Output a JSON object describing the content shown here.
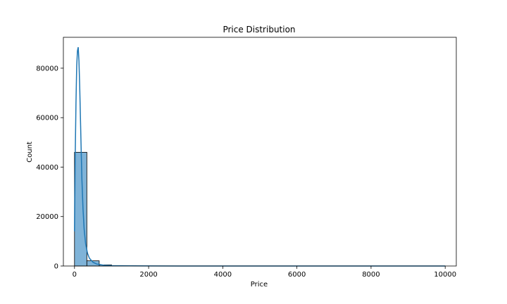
{
  "chart_data": {
    "type": "bar",
    "title": "Price Distribution",
    "xlabel": "Price",
    "ylabel": "Count",
    "xlim": [
      -300,
      10300
    ],
    "ylim": [
      0,
      92500
    ],
    "x_ticks": [
      0,
      2000,
      4000,
      6000,
      8000,
      10000
    ],
    "x_tick_labels": [
      "0",
      "2000",
      "4000",
      "6000",
      "8000",
      "10000"
    ],
    "y_ticks": [
      0,
      20000,
      40000,
      60000,
      80000
    ],
    "y_tick_labels": [
      "0",
      "20000",
      "40000",
      "60000",
      "80000"
    ],
    "grid": false,
    "bar_color": "#7fb3d8",
    "line_color": "#1f77b4",
    "series": [
      {
        "kind": "histogram",
        "bin_width": 333.33,
        "bins": [
          {
            "x0": 0,
            "x1": 333.33,
            "count": 46000
          },
          {
            "x0": 333.33,
            "x1": 666.67,
            "count": 2100
          },
          {
            "x0": 666.67,
            "x1": 1000,
            "count": 450
          },
          {
            "x0": 1000,
            "x1": 1333.33,
            "count": 150
          },
          {
            "x0": 1333.33,
            "x1": 1666.67,
            "count": 60
          },
          {
            "x0": 1666.67,
            "x1": 2000,
            "count": 30
          },
          {
            "x0": 2000,
            "x1": 2333.33,
            "count": 20
          },
          {
            "x0": 2333.33,
            "x1": 2666.67,
            "count": 12
          },
          {
            "x0": 2666.67,
            "x1": 3000,
            "count": 10
          },
          {
            "x0": 3000,
            "x1": 3333.33,
            "count": 6
          },
          {
            "x0": 3333.33,
            "x1": 3666.67,
            "count": 5
          },
          {
            "x0": 3666.67,
            "x1": 4000,
            "count": 4
          },
          {
            "x0": 4000,
            "x1": 4333.33,
            "count": 3
          },
          {
            "x0": 4333.33,
            "x1": 4666.67,
            "count": 2
          },
          {
            "x0": 4666.67,
            "x1": 5000,
            "count": 2
          },
          {
            "x0": 5000,
            "x1": 5333.33,
            "count": 2
          },
          {
            "x0": 5333.33,
            "x1": 5666.67,
            "count": 1
          },
          {
            "x0": 5666.67,
            "x1": 6000,
            "count": 1
          },
          {
            "x0": 6000,
            "x1": 6333.33,
            "count": 1
          },
          {
            "x0": 6333.33,
            "x1": 6666.67,
            "count": 1
          },
          {
            "x0": 6666.67,
            "x1": 7000,
            "count": 1
          },
          {
            "x0": 7000,
            "x1": 7333.33,
            "count": 1
          },
          {
            "x0": 7333.33,
            "x1": 7666.67,
            "count": 1
          },
          {
            "x0": 7666.67,
            "x1": 8000,
            "count": 1
          },
          {
            "x0": 8000,
            "x1": 8333.33,
            "count": 1
          },
          {
            "x0": 8333.33,
            "x1": 8666.67,
            "count": 1
          },
          {
            "x0": 8666.67,
            "x1": 9000,
            "count": 1
          },
          {
            "x0": 9000,
            "x1": 9333.33,
            "count": 1
          },
          {
            "x0": 9333.33,
            "x1": 9666.67,
            "count": 1
          },
          {
            "x0": 9666.67,
            "x1": 10000,
            "count": 2
          }
        ]
      },
      {
        "kind": "kde",
        "points": [
          [
            0,
            14000
          ],
          [
            20,
            45000
          ],
          [
            40,
            66000
          ],
          [
            60,
            81000
          ],
          [
            80,
            87000
          ],
          [
            100,
            88500
          ],
          [
            120,
            83000
          ],
          [
            140,
            73000
          ],
          [
            160,
            60000
          ],
          [
            180,
            47000
          ],
          [
            200,
            35000
          ],
          [
            230,
            23000
          ],
          [
            260,
            15000
          ],
          [
            300,
            9000
          ],
          [
            350,
            5200
          ],
          [
            400,
            3200
          ],
          [
            500,
            1500
          ],
          [
            600,
            800
          ],
          [
            800,
            300
          ],
          [
            1000,
            150
          ],
          [
            1500,
            60
          ],
          [
            2000,
            30
          ],
          [
            3000,
            15
          ],
          [
            4000,
            8
          ],
          [
            6000,
            4
          ],
          [
            8000,
            3
          ],
          [
            10000,
            3
          ]
        ]
      }
    ]
  }
}
